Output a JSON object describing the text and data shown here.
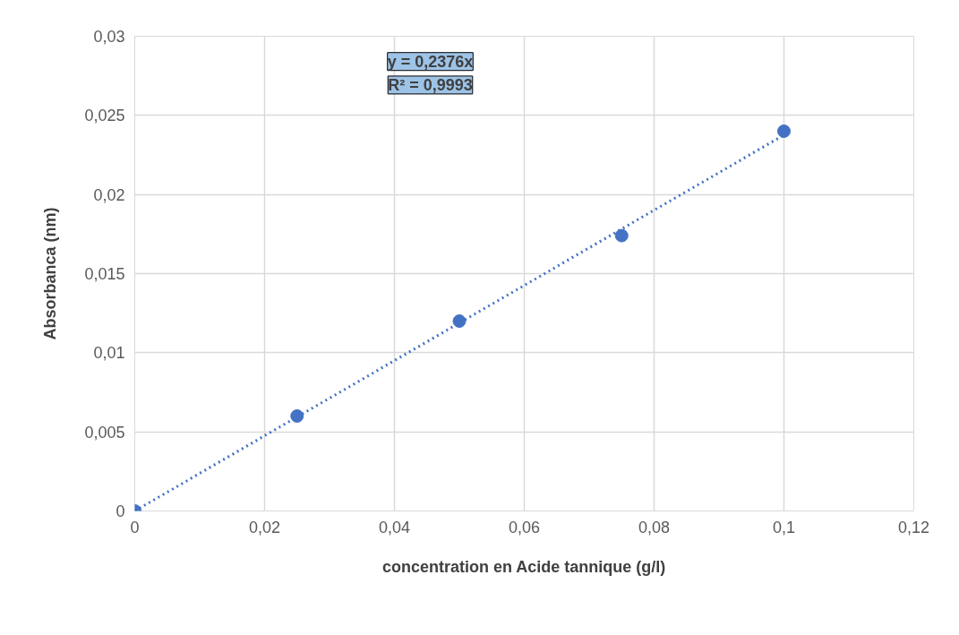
{
  "chart_data": {
    "type": "scatter",
    "xlabel": "concentration en Acide tannique (g/l)",
    "ylabel": "Absorbanca (nm)",
    "annotations": [
      "y = 0,2376x",
      "R² = 0,9993"
    ],
    "x": [
      0,
      0.025,
      0.05,
      0.075,
      0.1
    ],
    "series": [
      {
        "type": "scatter",
        "color": "#4472c4",
        "values": [
          0,
          0.006,
          0.012,
          0.0174,
          0.024
        ],
        "marker": "circle"
      },
      {
        "type": "line",
        "color": "#4472c4",
        "x": [
          0,
          0.1
        ],
        "values": [
          0,
          0.02376
        ],
        "line_style": "dotted",
        "marker": "none"
      }
    ],
    "xlim": [
      0,
      0.12
    ],
    "ylim": [
      0,
      0.03
    ],
    "xticks": [
      0,
      {
        "value": 0.02,
        "label": "0,02"
      },
      {
        "value": 0.04,
        "label": "0,04"
      },
      {
        "value": 0.06,
        "label": "0,06"
      },
      {
        "value": 0.08,
        "label": "0,08"
      },
      {
        "value": 0.1,
        "label": "0,1"
      },
      {
        "value": 0.12,
        "label": "0,12"
      }
    ],
    "yticks": [
      0,
      {
        "value": 0.005,
        "label": "0,005"
      },
      {
        "value": 0.01,
        "label": "0,01"
      },
      {
        "value": 0.015,
        "label": "0,015"
      },
      {
        "value": 0.02,
        "label": "0,02"
      },
      {
        "value": 0.025,
        "label": "0,025"
      },
      {
        "value": 0.03,
        "label": "0,03"
      }
    ],
    "grid": true
  }
}
